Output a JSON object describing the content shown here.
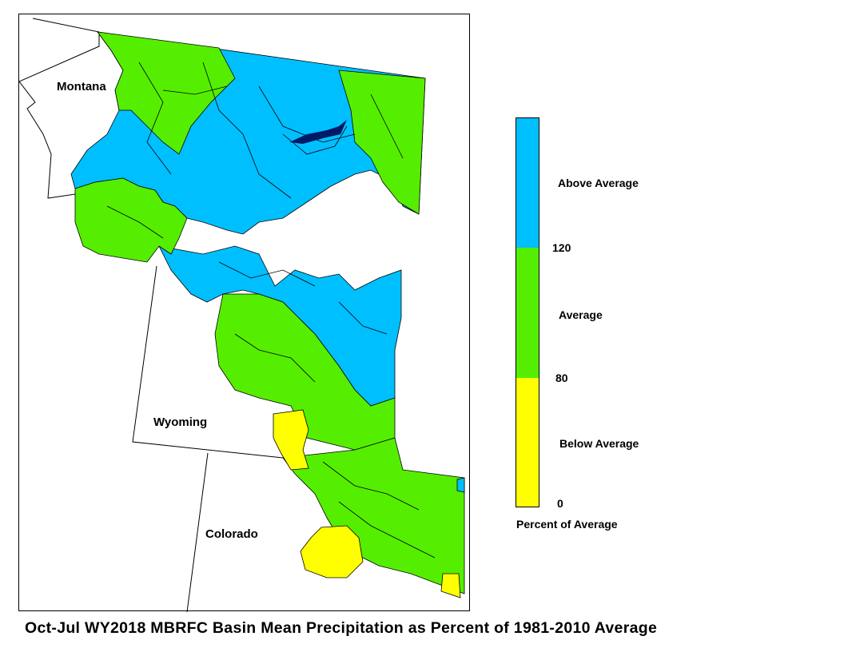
{
  "map": {
    "state_labels": {
      "montana": "Montana",
      "wyoming": "Wyoming",
      "colorado": "Colorado"
    },
    "colors": {
      "above": "#00BFFF",
      "average": "#55EE00",
      "below": "#FFFF00",
      "outline": "#000000",
      "state_line": "#000000"
    }
  },
  "legend": {
    "categories": [
      {
        "label": "Above Average",
        "color": "#00BFFF",
        "range": [
          120,
          null
        ]
      },
      {
        "label": "Average",
        "color": "#55EE00",
        "range": [
          80,
          120
        ]
      },
      {
        "label": "Below Average",
        "color": "#FFFF00",
        "range": [
          0,
          80
        ]
      }
    ],
    "ticks": {
      "t120": "120",
      "t80": "80",
      "t0": "0"
    },
    "title": "Percent of Average"
  },
  "caption": "Oct-Jul WY2018 MBRFC Basin Mean Precipitation as Percent of 1981-2010 Average"
}
